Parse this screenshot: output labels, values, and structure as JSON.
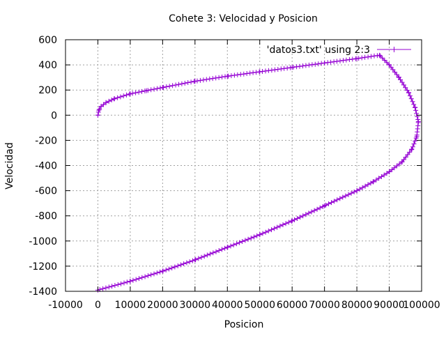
{
  "chart_data": {
    "type": "line",
    "title": "Cohete 3: Velocidad y Posicion",
    "xlabel": "Posicion",
    "ylabel": "Velocidad",
    "xlim": [
      -10000,
      100000
    ],
    "ylim": [
      -1400,
      600
    ],
    "x_ticks": [
      -10000,
      0,
      10000,
      20000,
      30000,
      40000,
      50000,
      60000,
      70000,
      80000,
      90000,
      100000
    ],
    "y_ticks": [
      -1400,
      -1200,
      -1000,
      -800,
      -600,
      -400,
      -200,
      0,
      200,
      400,
      600
    ],
    "grid": true,
    "legend_position": "top-right",
    "colors": {
      "series": "#9400d3",
      "grid": "#a0a0a0",
      "axes": "#000000"
    },
    "series": [
      {
        "name": "'datos3.txt' using 2:3",
        "marker": "plus",
        "points": [
          [
            0,
            0
          ],
          [
            300,
            40
          ],
          [
            1000,
            70
          ],
          [
            2500,
            100
          ],
          [
            5000,
            130
          ],
          [
            10000,
            170
          ],
          [
            15000,
            195
          ],
          [
            20000,
            220
          ],
          [
            30000,
            270
          ],
          [
            40000,
            310
          ],
          [
            50000,
            345
          ],
          [
            60000,
            380
          ],
          [
            70000,
            415
          ],
          [
            80000,
            450
          ],
          [
            87000,
            477
          ],
          [
            90000,
            400
          ],
          [
            93000,
            300
          ],
          [
            96000,
            180
          ],
          [
            98000,
            60
          ],
          [
            99000,
            -50
          ],
          [
            98500,
            -170
          ],
          [
            97000,
            -270
          ],
          [
            94000,
            -370
          ],
          [
            90000,
            -450
          ],
          [
            85000,
            -530
          ],
          [
            80000,
            -600
          ],
          [
            70000,
            -720
          ],
          [
            60000,
            -840
          ],
          [
            50000,
            -950
          ],
          [
            40000,
            -1050
          ],
          [
            30000,
            -1150
          ],
          [
            20000,
            -1240
          ],
          [
            10000,
            -1320
          ],
          [
            0,
            -1390
          ]
        ]
      }
    ]
  }
}
